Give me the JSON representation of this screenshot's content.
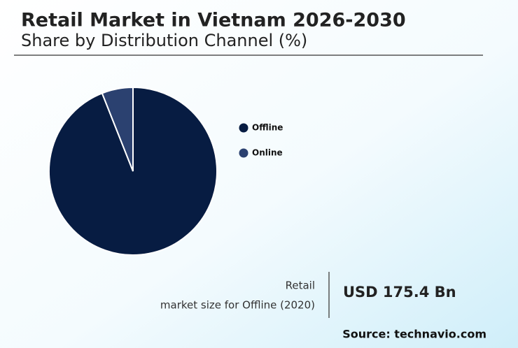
{
  "chart_data": {
    "type": "pie",
    "title": "Retail Market in Vietnam 2026-2030",
    "subtitle": "Share by Distribution Channel (%)",
    "categories": [
      "Offline",
      "Online"
    ],
    "values": [
      94,
      6
    ],
    "colors": [
      "#071c42",
      "#2b4170"
    ],
    "legend": "right"
  },
  "footer": {
    "caption": [
      "Retail",
      "market size for Offline (2020)"
    ],
    "value": "USD 175.4 Bn",
    "source": "Source: technavio.com"
  }
}
